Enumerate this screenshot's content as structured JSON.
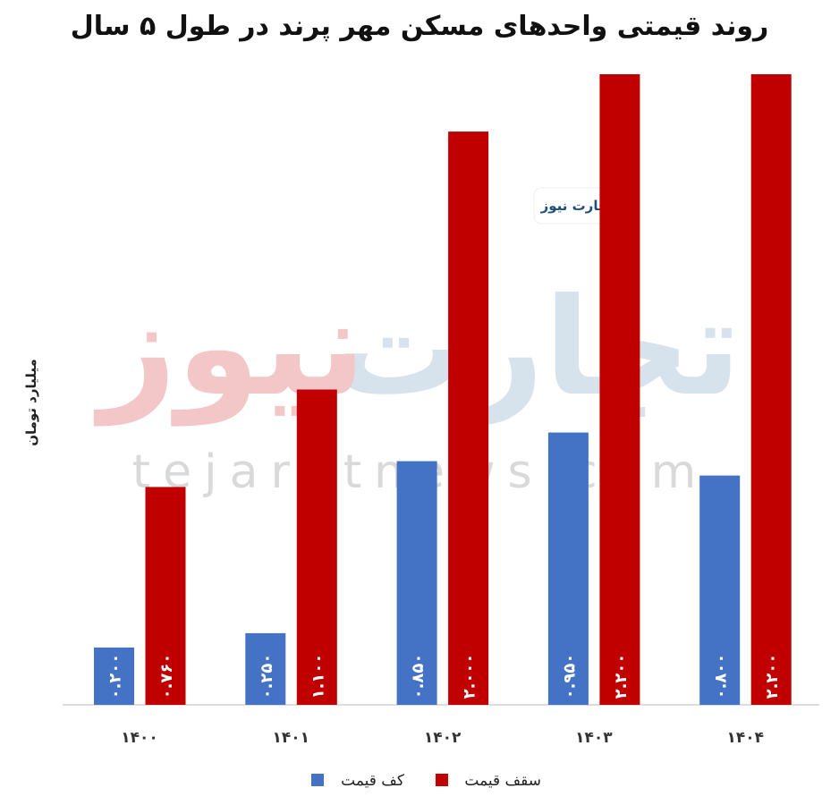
{
  "chart_data": {
    "type": "bar",
    "title": "روند قیمتی واحدهای مسکن مهر پرند در طول ۵ سال",
    "ylabel": "میلیارد تومان",
    "xlabel": "",
    "categories": [
      "۱۴۰۰",
      "۱۴۰۱",
      "۱۴۰۲",
      "۱۴۰۳",
      "۱۴۰۴"
    ],
    "ylim": [
      0,
      2.2
    ],
    "grid": false,
    "legend_placement": "bottom",
    "series": [
      {
        "name": "کف قیمت",
        "color": "#4472C4",
        "values": [
          0.2,
          0.25,
          0.85,
          0.95,
          0.8
        ],
        "labels": [
          "۰.۲۰۰",
          "۰.۲۵۰",
          "۰.۸۵۰",
          "۰.۹۵۰",
          "۰.۸۰۰"
        ]
      },
      {
        "name": "سقف قیمت",
        "color": "#C00000",
        "values": [
          0.76,
          1.1,
          2.0,
          2.2,
          2.2
        ],
        "labels": [
          "۰.۷۶۰",
          "۱.۱۰۰",
          "۲.۰۰۰",
          "۲.۲۰۰",
          "۲.۲۰۰"
        ]
      }
    ]
  },
  "watermark": {
    "logo": "تجارت نیوز",
    "site": "tejaratnews.com"
  }
}
